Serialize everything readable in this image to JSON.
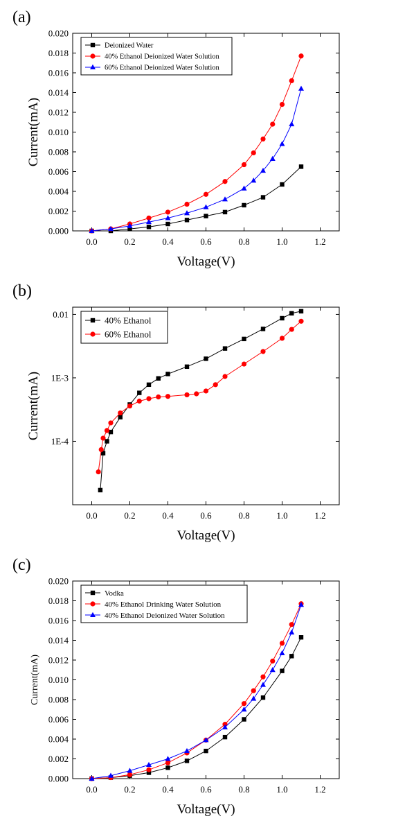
{
  "figure": {
    "panels": [
      "(a)",
      "(b)",
      "(c)"
    ]
  },
  "chart_data": [
    {
      "type": "scatter",
      "panel_label": "(a)",
      "xlabel": "Voltage(V)",
      "ylabel": "Current(mA)",
      "xlim": [
        -0.1,
        1.3
      ],
      "ylim": [
        0,
        0.02
      ],
      "yscale": "linear",
      "xticks": [
        0.0,
        0.2,
        0.4,
        0.6,
        0.8,
        1.0,
        1.2
      ],
      "xtick_labels": [
        "0.0",
        "0.2",
        "0.4",
        "0.6",
        "0.8",
        "1.0",
        "1.2"
      ],
      "yticks": [
        0,
        0.002,
        0.004,
        0.006,
        0.008,
        0.01,
        0.012,
        0.014,
        0.016,
        0.018,
        0.02
      ],
      "ytick_labels": [
        "0.000",
        "0.002",
        "0.004",
        "0.006",
        "0.008",
        "0.010",
        "0.012",
        "0.014",
        "0.016",
        "0.018",
        "0.020"
      ],
      "legend_position": "top-left",
      "grid": false,
      "series": [
        {
          "name": "Deionized Water",
          "marker": "square",
          "color": "#000000",
          "x": [
            0.0,
            0.1,
            0.2,
            0.3,
            0.4,
            0.5,
            0.6,
            0.7,
            0.8,
            0.9,
            1.0,
            1.1
          ],
          "y": [
            0.0,
            0.0,
            0.0002,
            0.0004,
            0.0007,
            0.0011,
            0.0015,
            0.0019,
            0.0026,
            0.0034,
            0.0047,
            0.0065
          ]
        },
        {
          "name": "40% Ethanol Deionized Water Solution",
          "marker": "circle",
          "color": "#ff0000",
          "x": [
            0.0,
            0.1,
            0.2,
            0.3,
            0.4,
            0.5,
            0.6,
            0.7,
            0.8,
            0.85,
            0.9,
            0.95,
            1.0,
            1.05,
            1.1
          ],
          "y": [
            0.0,
            0.0002,
            0.0007,
            0.0013,
            0.0019,
            0.0027,
            0.0037,
            0.005,
            0.0067,
            0.0079,
            0.0093,
            0.0108,
            0.0128,
            0.0152,
            0.0177
          ]
        },
        {
          "name": "60%  Ethanol Deionized Water Solution",
          "marker": "triangle",
          "color": "#0000ff",
          "x": [
            0.0,
            0.1,
            0.2,
            0.3,
            0.4,
            0.5,
            0.6,
            0.7,
            0.8,
            0.85,
            0.9,
            0.95,
            1.0,
            1.05,
            1.1
          ],
          "y": [
            0.0,
            0.0002,
            0.0005,
            0.0009,
            0.0013,
            0.0018,
            0.0024,
            0.0032,
            0.0043,
            0.0051,
            0.0061,
            0.0073,
            0.0088,
            0.0108,
            0.0144
          ]
        }
      ]
    },
    {
      "type": "scatter",
      "panel_label": "(b)",
      "xlabel": "Voltage(V)",
      "ylabel": "Current(mA)",
      "xlim": [
        -0.1,
        1.3
      ],
      "ylim": [
        1e-05,
        0.013
      ],
      "yscale": "log",
      "xticks": [
        0.0,
        0.2,
        0.4,
        0.6,
        0.8,
        1.0,
        1.2
      ],
      "xtick_labels": [
        "0.0",
        "0.2",
        "0.4",
        "0.6",
        "0.8",
        "1.0",
        "1.2"
      ],
      "yticks": [
        0.0001,
        0.001,
        0.01
      ],
      "ytick_labels": [
        "1E-4",
        "1E-3",
        "0.01"
      ],
      "legend_position": "top-left",
      "grid": false,
      "series": [
        {
          "name": "40% Ethanol",
          "marker": "square",
          "color": "#000000",
          "x": [
            0.045,
            0.06,
            0.08,
            0.1,
            0.15,
            0.2,
            0.25,
            0.3,
            0.35,
            0.4,
            0.5,
            0.6,
            0.7,
            0.8,
            0.9,
            1.0,
            1.05,
            1.1
          ],
          "y": [
            1.7e-05,
            6.5e-05,
            0.0001,
            0.00014,
            0.00024,
            0.00038,
            0.00058,
            0.00078,
            0.00098,
            0.00115,
            0.0015,
            0.002,
            0.0029,
            0.0041,
            0.0059,
            0.0087,
            0.0104,
            0.0112
          ]
        },
        {
          "name": "60% Ethanol",
          "marker": "circle",
          "color": "#ff0000",
          "x": [
            0.035,
            0.05,
            0.06,
            0.08,
            0.1,
            0.15,
            0.2,
            0.25,
            0.3,
            0.35,
            0.4,
            0.5,
            0.55,
            0.6,
            0.65,
            0.7,
            0.8,
            0.9,
            1.0,
            1.05,
            1.1
          ],
          "y": [
            3.3e-05,
            7.4e-05,
            0.000112,
            0.000148,
            0.000195,
            0.00028,
            0.00036,
            0.00043,
            0.00047,
            0.0005,
            0.00051,
            0.00054,
            0.00056,
            0.00062,
            0.00078,
            0.00105,
            0.00165,
            0.0026,
            0.0042,
            0.0058,
            0.0078
          ]
        }
      ]
    },
    {
      "type": "scatter",
      "panel_label": "(c)",
      "xlabel": "Voltage(V)",
      "ylabel": "Current(mA)",
      "xlim": [
        -0.1,
        1.3
      ],
      "ylim": [
        0,
        0.02
      ],
      "yscale": "linear",
      "xticks": [
        0.0,
        0.2,
        0.4,
        0.6,
        0.8,
        1.0,
        1.2
      ],
      "xtick_labels": [
        "0.0",
        "0.2",
        "0.4",
        "0.6",
        "0.8",
        "1.0",
        "1.2"
      ],
      "yticks": [
        0,
        0.002,
        0.004,
        0.006,
        0.008,
        0.01,
        0.012,
        0.014,
        0.016,
        0.018,
        0.02
      ],
      "ytick_labels": [
        "0.000",
        "0.002",
        "0.004",
        "0.006",
        "0.008",
        "0.010",
        "0.012",
        "0.014",
        "0.016",
        "0.018",
        "0.020"
      ],
      "legend_position": "top-left",
      "grid": false,
      "series": [
        {
          "name": "Vodka",
          "marker": "square",
          "color": "#000000",
          "x": [
            0.0,
            0.1,
            0.2,
            0.3,
            0.4,
            0.5,
            0.6,
            0.7,
            0.8,
            0.9,
            1.0,
            1.05,
            1.1
          ],
          "y": [
            0.0,
            0.0001,
            0.0003,
            0.0006,
            0.0011,
            0.0018,
            0.0028,
            0.0042,
            0.006,
            0.0082,
            0.0109,
            0.0124,
            0.0143
          ]
        },
        {
          "name": "40% Ethanol Drinking Water Solution",
          "marker": "circle",
          "color": "#ff0000",
          "x": [
            0.0,
            0.1,
            0.2,
            0.3,
            0.4,
            0.5,
            0.6,
            0.7,
            0.8,
            0.85,
            0.9,
            0.95,
            1.0,
            1.05,
            1.1
          ],
          "y": [
            0.0,
            0.0001,
            0.0004,
            0.0009,
            0.0016,
            0.0026,
            0.0039,
            0.0055,
            0.0076,
            0.0089,
            0.0103,
            0.0119,
            0.0137,
            0.0156,
            0.0177
          ]
        },
        {
          "name": "40% Ethanol Deionized Water Solution",
          "marker": "triangle",
          "color": "#0000ff",
          "x": [
            0.0,
            0.1,
            0.2,
            0.3,
            0.4,
            0.5,
            0.6,
            0.7,
            0.8,
            0.85,
            0.9,
            0.95,
            1.0,
            1.05,
            1.1
          ],
          "y": [
            0.0,
            0.0003,
            0.0008,
            0.0014,
            0.002,
            0.0028,
            0.0039,
            0.0052,
            0.007,
            0.0081,
            0.0095,
            0.011,
            0.0127,
            0.0148,
            0.0176
          ]
        }
      ]
    }
  ]
}
